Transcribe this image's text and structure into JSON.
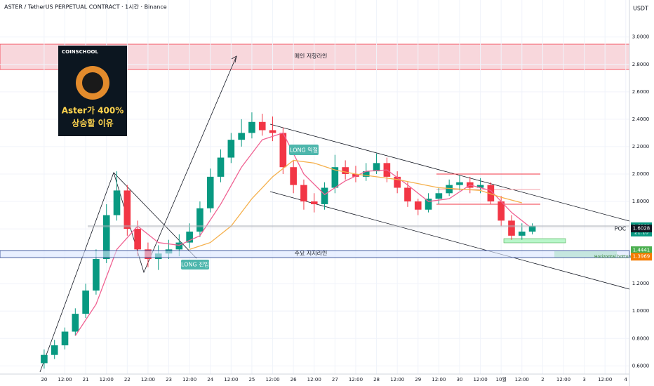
{
  "chart_data": {
    "type": "candlestick",
    "title": "ASTER / TetherUS PERPETUAL CONTRACT · 1시간 · Binance",
    "currency": "USDT",
    "xlim": [
      -25.5,
      337.3
    ],
    "ylim": [
      0.53,
      3.27
    ],
    "grid": true,
    "up_color": "#089981",
    "down_color": "#f23645",
    "yticks": [
      {
        "value": 0.6,
        "label": "0.6000"
      },
      {
        "value": 0.8,
        "label": "0.8000"
      },
      {
        "value": 1.0,
        "label": "1.0000"
      },
      {
        "value": 1.2,
        "label": "1.2000"
      },
      {
        "value": 1.4,
        "label": "1.4000"
      },
      {
        "value": 1.6,
        "label": "1.6000"
      },
      {
        "value": 1.8,
        "label": "1.8000"
      },
      {
        "value": 2.0,
        "label": "2.0000"
      },
      {
        "value": 2.2,
        "label": "2.2000"
      },
      {
        "value": 2.4,
        "label": "2.4000"
      },
      {
        "value": 2.6,
        "label": "2.6000"
      },
      {
        "value": 2.8,
        "label": "2.8000"
      },
      {
        "value": 3.0,
        "label": "3.0000"
      }
    ],
    "xticks": [
      {
        "value": 0,
        "label": "20"
      },
      {
        "value": 12,
        "label": "12:00"
      },
      {
        "value": 24,
        "label": "21"
      },
      {
        "value": 36,
        "label": "12:00"
      },
      {
        "value": 48,
        "label": "22"
      },
      {
        "value": 60,
        "label": "12:00"
      },
      {
        "value": 72,
        "label": "23"
      },
      {
        "value": 84,
        "label": "12:00"
      },
      {
        "value": 96,
        "label": "24"
      },
      {
        "value": 108,
        "label": "12:00"
      },
      {
        "value": 120,
        "label": "25"
      },
      {
        "value": 132,
        "label": "12:00"
      },
      {
        "value": 144,
        "label": "26"
      },
      {
        "value": 156,
        "label": "12:00"
      },
      {
        "value": 168,
        "label": "27"
      },
      {
        "value": 180,
        "label": "12:00"
      },
      {
        "value": 192,
        "label": "28"
      },
      {
        "value": 204,
        "label": "12:00"
      },
      {
        "value": 216,
        "label": "29"
      },
      {
        "value": 228,
        "label": "12:00"
      },
      {
        "value": 240,
        "label": "30"
      },
      {
        "value": 252,
        "label": "12:00"
      },
      {
        "value": 264,
        "label": "10월"
      },
      {
        "value": 276,
        "label": "12:00"
      },
      {
        "value": 288,
        "label": "2"
      },
      {
        "value": 300,
        "label": "12:00"
      },
      {
        "value": 312,
        "label": "3"
      },
      {
        "value": 324,
        "label": "12:00"
      },
      {
        "value": 336,
        "label": "4"
      }
    ],
    "x": [
      0,
      6,
      12,
      18,
      24,
      30,
      36,
      42,
      48,
      54,
      60,
      66,
      72,
      78,
      84,
      90,
      96,
      102,
      108,
      114,
      120,
      126,
      132,
      138,
      144,
      150,
      156,
      162,
      168,
      174,
      180,
      186,
      192,
      198,
      204,
      210,
      216,
      222,
      228,
      234,
      240,
      246,
      252,
      258,
      264,
      270,
      276,
      282
    ],
    "open": [
      0.62,
      0.68,
      0.75,
      0.85,
      0.98,
      1.15,
      1.38,
      1.7,
      1.88,
      1.6,
      1.45,
      1.38,
      1.42,
      1.45,
      1.5,
      1.58,
      1.75,
      1.98,
      2.12,
      2.25,
      2.3,
      2.38,
      2.32,
      2.3,
      2.05,
      1.92,
      1.8,
      1.78,
      1.9,
      2.05,
      2.0,
      1.98,
      2.02,
      2.08,
      1.98,
      1.9,
      1.8,
      1.74,
      1.82,
      1.86,
      1.92,
      1.94,
      1.9,
      1.92,
      1.8,
      1.66,
      1.55,
      1.58
    ],
    "high": [
      0.72,
      0.79,
      0.88,
      1.02,
      1.2,
      1.45,
      1.78,
      2.02,
      1.92,
      1.66,
      1.5,
      1.48,
      1.52,
      1.56,
      1.64,
      1.8,
      2.04,
      2.18,
      2.3,
      2.4,
      2.45,
      2.44,
      2.42,
      2.34,
      2.1,
      1.96,
      1.86,
      1.94,
      2.14,
      2.1,
      2.06,
      2.08,
      2.15,
      2.12,
      2.02,
      1.94,
      1.82,
      1.86,
      1.9,
      1.96,
      1.99,
      1.98,
      1.97,
      1.94,
      1.84,
      1.7,
      1.64,
      1.64
    ],
    "low": [
      0.58,
      0.65,
      0.72,
      0.82,
      0.95,
      1.12,
      1.35,
      1.66,
      1.55,
      1.4,
      1.32,
      1.3,
      1.38,
      1.4,
      1.46,
      1.54,
      1.72,
      1.94,
      2.08,
      2.2,
      2.26,
      2.28,
      2.24,
      2.0,
      1.86,
      1.74,
      1.72,
      1.74,
      1.86,
      1.96,
      1.94,
      1.95,
      2.0,
      1.94,
      1.86,
      1.76,
      1.7,
      1.72,
      1.78,
      1.84,
      1.88,
      1.86,
      1.86,
      1.78,
      1.62,
      1.52,
      1.52,
      1.56
    ],
    "close": [
      0.68,
      0.75,
      0.85,
      0.98,
      1.15,
      1.38,
      1.7,
      1.88,
      1.6,
      1.45,
      1.38,
      1.42,
      1.45,
      1.5,
      1.58,
      1.75,
      1.98,
      2.12,
      2.25,
      2.3,
      2.38,
      2.32,
      2.3,
      2.05,
      1.92,
      1.8,
      1.78,
      1.9,
      2.05,
      2.0,
      1.98,
      2.02,
      2.08,
      1.98,
      1.9,
      1.8,
      1.74,
      1.82,
      1.86,
      1.92,
      1.94,
      1.9,
      1.92,
      1.8,
      1.66,
      1.55,
      1.58,
      1.62
    ],
    "lines": [
      {
        "color": "#f06292",
        "x": [
          18,
          30,
          42,
          54,
          66,
          78,
          90,
          102,
          114,
          126,
          138,
          150,
          162,
          174,
          186,
          198,
          210,
          222,
          234,
          246,
          258,
          270,
          280
        ],
        "values": [
          0.82,
          1.05,
          1.45,
          1.62,
          1.5,
          1.48,
          1.55,
          1.78,
          2.05,
          2.25,
          2.3,
          2.0,
          1.85,
          1.95,
          2.02,
          2.03,
          1.92,
          1.8,
          1.82,
          1.92,
          1.88,
          1.72,
          1.62
        ]
      },
      {
        "color": "#f5b04c",
        "x": [
          84,
          96,
          108,
          120,
          132,
          144,
          156,
          168,
          180,
          192,
          204,
          216,
          228,
          240,
          252,
          264,
          276
        ],
        "values": [
          1.45,
          1.5,
          1.62,
          1.82,
          1.98,
          2.1,
          2.08,
          2.03,
          2.0,
          1.98,
          1.96,
          1.93,
          1.9,
          1.89,
          1.88,
          1.83,
          1.79
        ]
      }
    ],
    "price_tags": [
      {
        "value": 1.6191,
        "color": "#089981",
        "time": "21:10"
      },
      {
        "value": 1.6028,
        "color": "#131722"
      },
      {
        "value": 1.4441,
        "color": "#4caf50"
      },
      {
        "value": 1.3969,
        "color": "#f57c00"
      }
    ],
    "annotations": {
      "resistance": "메인 저항라인",
      "support": "주요 지지라인",
      "long_entry": "LONG 진입",
      "long_exit": "LONG 익절",
      "poc": "POC",
      "pattern": "Horizontal bottom"
    },
    "thumbnail": {
      "brand": "COINSCHOOL",
      "line1": "Aster가 400%",
      "line2": "상승할 이유"
    }
  }
}
